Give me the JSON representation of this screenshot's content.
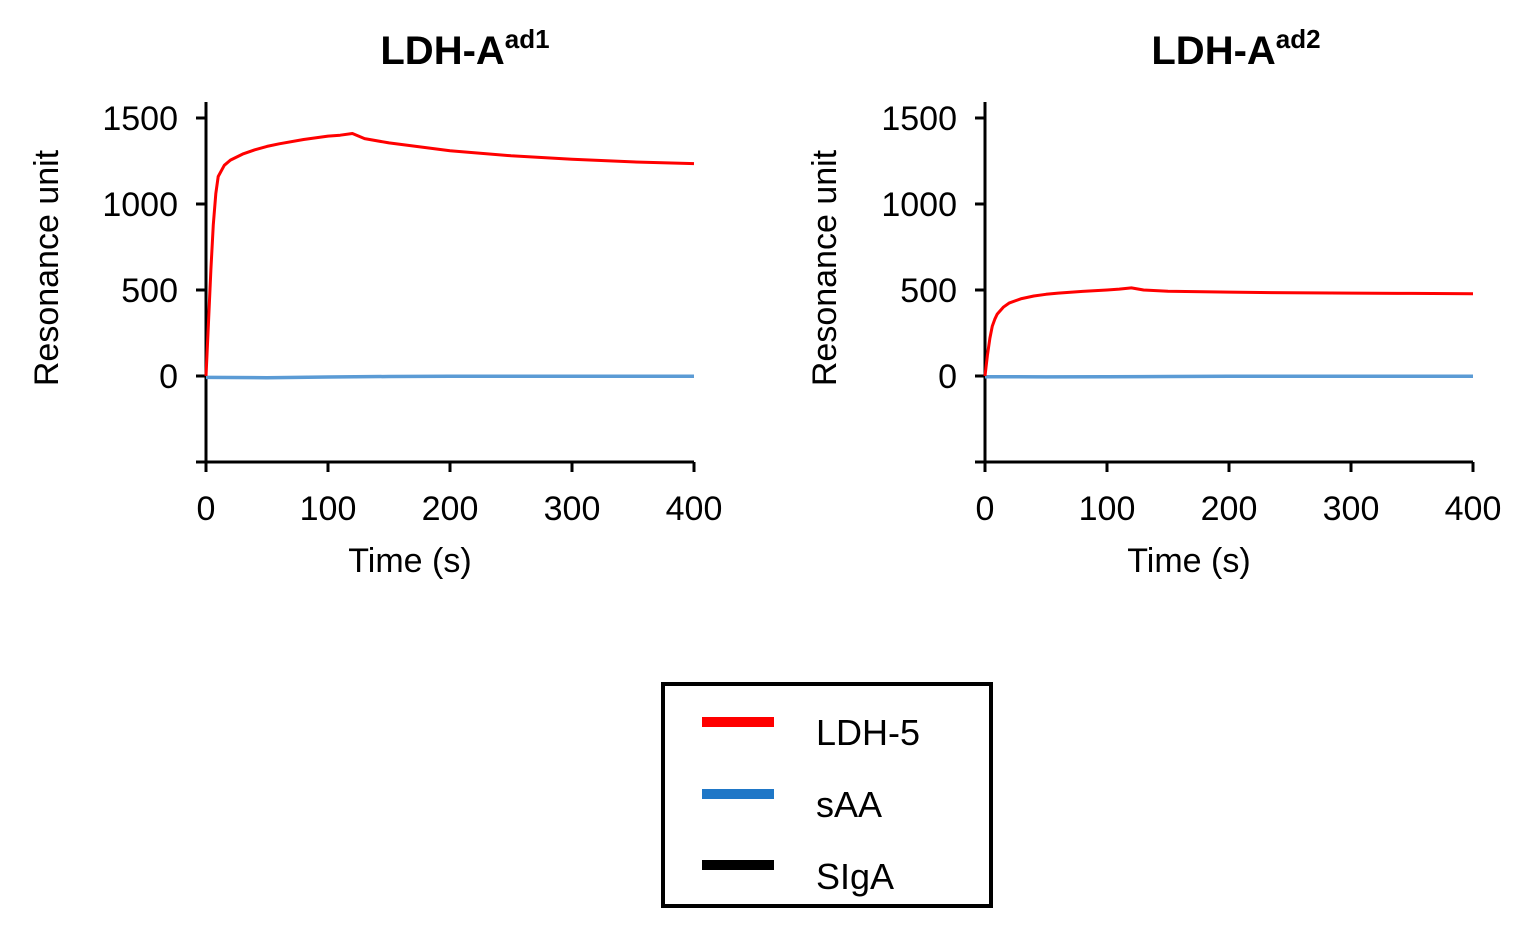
{
  "chart_data": [
    {
      "type": "line",
      "title": "LDH-A",
      "title_superscript": "ad1",
      "xlabel": "Time (s)",
      "ylabel": "Resonance unit",
      "xlim": [
        0,
        400
      ],
      "ylim": [
        -500,
        1500
      ],
      "xticks": [
        "0",
        "100",
        "200",
        "300",
        "400"
      ],
      "yticks": [
        "0",
        "500",
        "1000",
        "1500"
      ],
      "series": [
        {
          "name": "LDH-5",
          "color": "#ff0000",
          "x": [
            0,
            2,
            4,
            6,
            8,
            10,
            15,
            20,
            30,
            40,
            50,
            60,
            80,
            100,
            110,
            120,
            130,
            150,
            200,
            250,
            300,
            350,
            400
          ],
          "y": [
            0,
            300,
            620,
            880,
            1060,
            1160,
            1225,
            1255,
            1290,
            1315,
            1335,
            1350,
            1375,
            1395,
            1400,
            1410,
            1380,
            1355,
            1310,
            1280,
            1260,
            1245,
            1235
          ]
        },
        {
          "name": "sAA",
          "color": "#5b9bd5",
          "x": [
            0,
            50,
            100,
            150,
            200,
            250,
            300,
            350,
            400
          ],
          "y": [
            -8,
            -10,
            -6,
            -3,
            -2,
            -2,
            -2,
            -2,
            -2
          ]
        }
      ]
    },
    {
      "type": "line",
      "title": "LDH-A",
      "title_superscript": "ad2",
      "xlabel": "Time (s)",
      "ylabel": "Resonance unit",
      "xlim": [
        0,
        400
      ],
      "ylim": [
        -500,
        1500
      ],
      "xticks": [
        "0",
        "100",
        "200",
        "300",
        "400"
      ],
      "yticks": [
        "0",
        "500",
        "1000",
        "1500"
      ],
      "series": [
        {
          "name": "LDH-5",
          "color": "#ff0000",
          "x": [
            0,
            2,
            4,
            6,
            8,
            10,
            15,
            20,
            30,
            40,
            50,
            60,
            80,
            100,
            110,
            120,
            130,
            150,
            200,
            250,
            300,
            350,
            400
          ],
          "y": [
            0,
            120,
            220,
            290,
            330,
            360,
            400,
            425,
            450,
            465,
            475,
            482,
            492,
            500,
            505,
            512,
            500,
            493,
            488,
            484,
            482,
            480,
            478
          ]
        },
        {
          "name": "sAA",
          "color": "#5b9bd5",
          "x": [
            0,
            50,
            100,
            150,
            200,
            250,
            300,
            350,
            400
          ],
          "y": [
            -4,
            -5,
            -4,
            -3,
            -2,
            -2,
            -2,
            -2,
            -2
          ]
        }
      ]
    }
  ],
  "legend": {
    "items": [
      {
        "label": "LDH-5",
        "color": "#ff0000"
      },
      {
        "label": "sAA",
        "color": "#1f77c7"
      },
      {
        "label": "SIgA",
        "color": "#000000"
      }
    ]
  }
}
